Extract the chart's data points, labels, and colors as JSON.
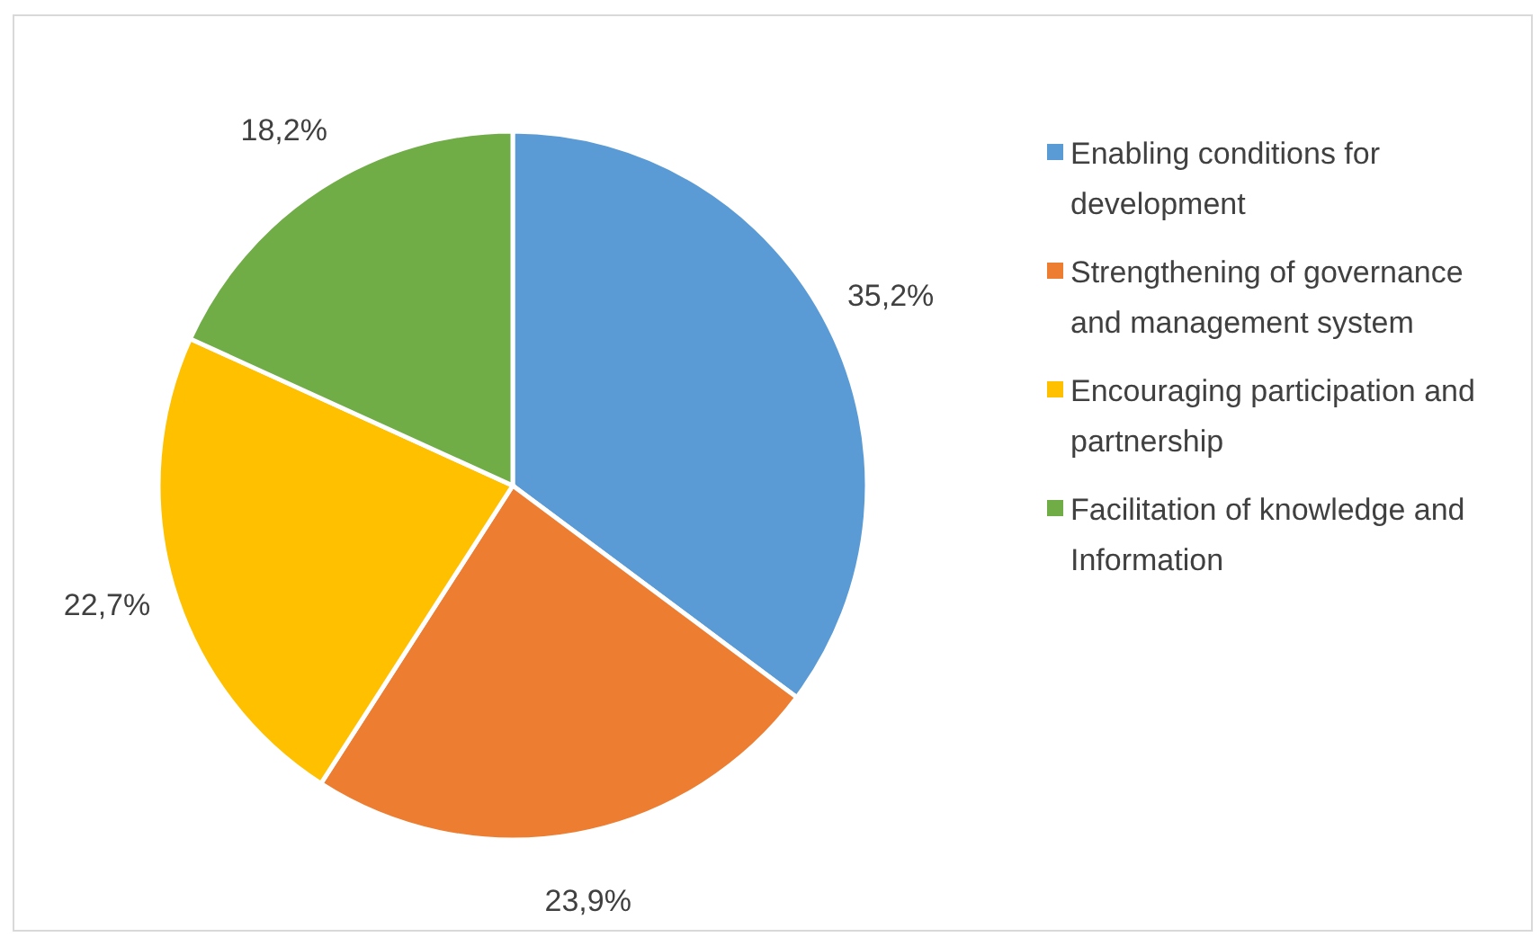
{
  "chart_data": {
    "type": "pie",
    "categories": [
      "Enabling conditions for development",
      "Strengthening of governance and management system",
      "Encouraging participation and partnership",
      "Facilitation of knowledge and Information"
    ],
    "values": [
      35.2,
      23.9,
      22.7,
      18.2
    ],
    "colors": [
      "#5b9bd5",
      "#ed7d31",
      "#ffc000",
      "#70ad47"
    ],
    "value_labels": [
      "35,2%",
      "23,9%",
      "22,7%",
      "18,2%"
    ],
    "legend": "right"
  }
}
